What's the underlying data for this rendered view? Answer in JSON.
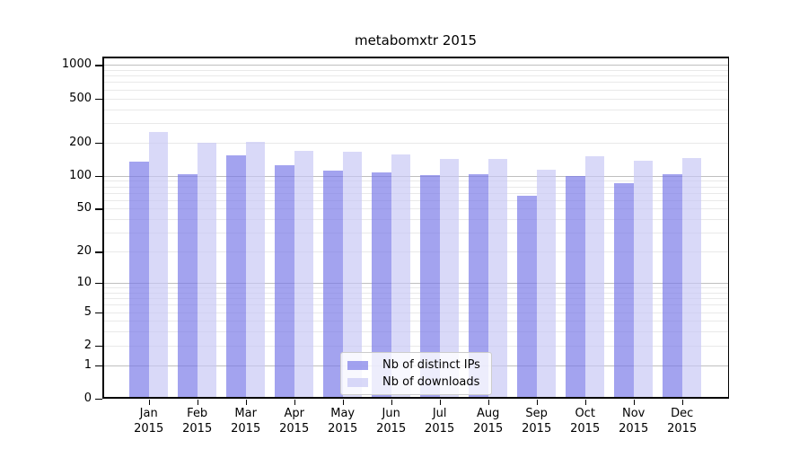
{
  "chart_data": {
    "type": "bar",
    "title": "metabomxtr 2015",
    "categories": [
      "Jan 2015",
      "Feb 2015",
      "Mar 2015",
      "Apr 2015",
      "May 2015",
      "Jun 2015",
      "Jul 2015",
      "Aug 2015",
      "Sep 2015",
      "Oct 2015",
      "Nov 2015",
      "Dec 2015"
    ],
    "series": [
      {
        "name": "Nb of distinct IPs",
        "color": "rgba(120,120,232,0.68)",
        "values": [
          134,
          103,
          152,
          125,
          112,
          108,
          102,
          103,
          66,
          99,
          85,
          103
        ]
      },
      {
        "name": "Nb of downloads",
        "color": "rgba(199,199,245,0.68)",
        "values": [
          250,
          198,
          204,
          167,
          165,
          157,
          143,
          141,
          113,
          149,
          136,
          145
        ]
      }
    ],
    "xlabel": "",
    "ylabel": "",
    "yscale": "log(1+v)",
    "ytick_values": [
      0,
      1,
      2,
      5,
      10,
      20,
      50,
      100,
      200,
      500,
      1000
    ],
    "ytick_labels": [
      "0",
      "1",
      "2",
      "5",
      "10",
      "20",
      "50",
      "100",
      "200",
      "500",
      "1000"
    ],
    "ylim": [
      0,
      1188
    ],
    "grid": true,
    "legend_position": "lower center",
    "legend_labels": [
      "Nb of distinct IPs",
      "Nb of downloads"
    ]
  },
  "colors": {
    "grid_major": "#bfbfbf",
    "grid_minor": "#e9e9e9",
    "axis": "#000000",
    "legend_border": "#cccccc",
    "legend_bg": "rgba(255,255,255,0.8)"
  }
}
